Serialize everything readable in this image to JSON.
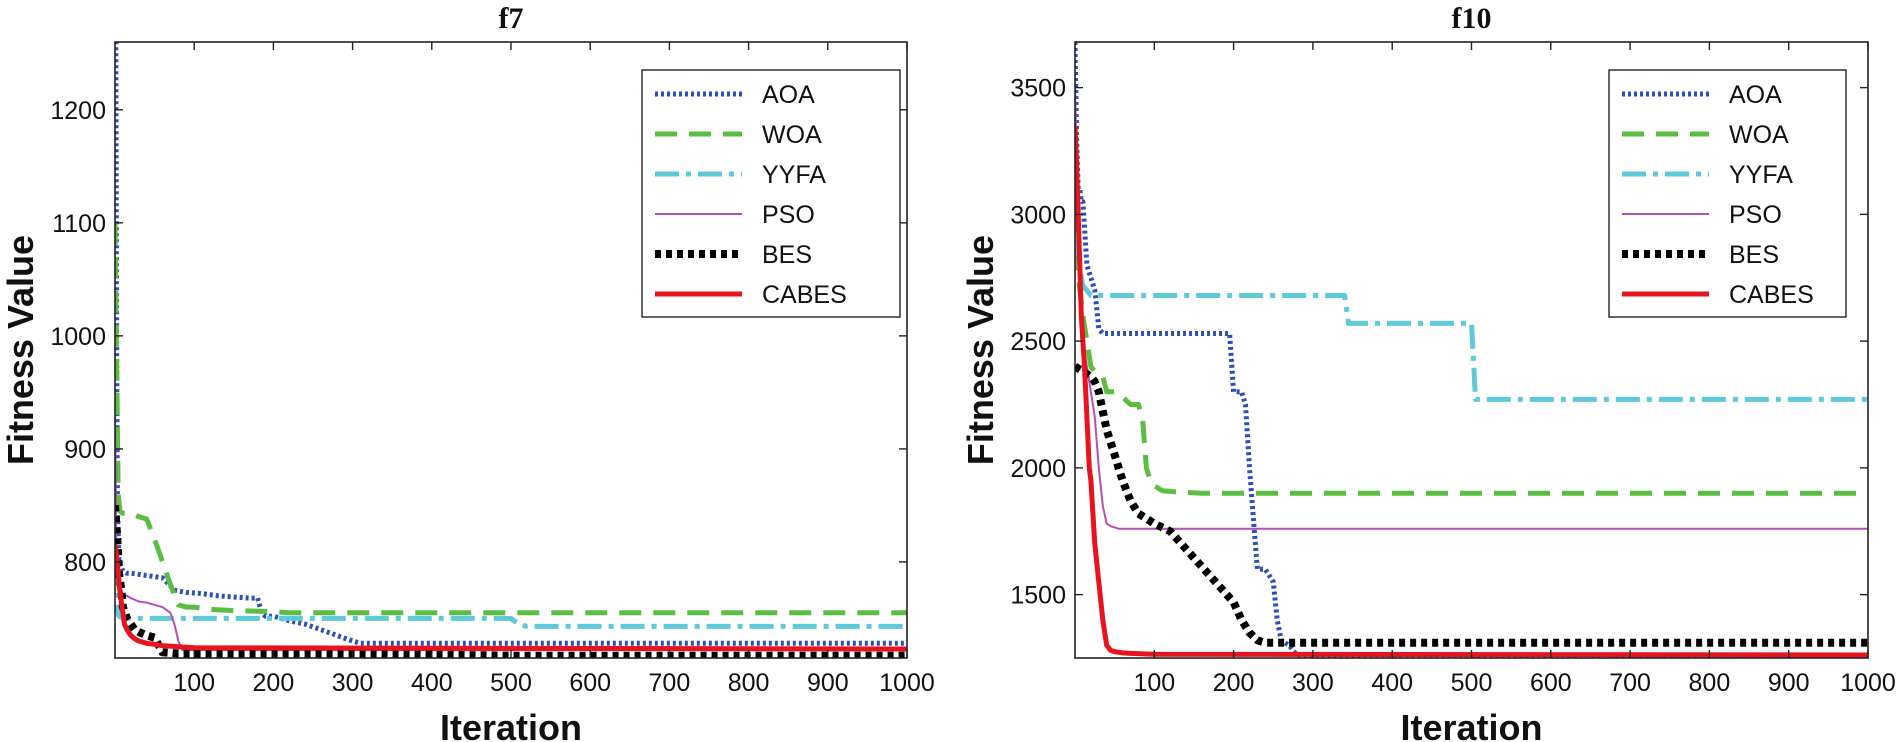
{
  "chart_data": [
    {
      "type": "line",
      "title": "f7",
      "xlabel": "Iteration",
      "ylabel": "Fitness Value",
      "xlim": [
        0,
        1000
      ],
      "ylim": [
        715,
        1260
      ],
      "xticks": [
        100,
        200,
        300,
        400,
        500,
        600,
        700,
        800,
        900,
        1000
      ],
      "yticks": [
        800,
        900,
        1000,
        1100,
        1200
      ],
      "legend_position": "top-right",
      "series": [
        {
          "name": "AOA",
          "color": "#2e4fb5",
          "style": "dotted",
          "x": [
            0,
            1,
            2,
            3,
            5,
            10,
            15,
            20,
            40,
            60,
            75,
            90,
            110,
            130,
            150,
            170,
            180,
            185,
            190,
            200,
            220,
            240,
            260,
            280,
            300,
            310,
            320,
            1000
          ],
          "y": [
            1260,
            1260,
            1000,
            850,
            800,
            792,
            790,
            790,
            788,
            786,
            775,
            773,
            772,
            770,
            769,
            768,
            768,
            755,
            752,
            752,
            748,
            745,
            740,
            735,
            730,
            728,
            728,
            728
          ]
        },
        {
          "name": "WOA",
          "color": "#5bbd42",
          "style": "dashed",
          "x": [
            0,
            2,
            4,
            6,
            10,
            20,
            30,
            40,
            50,
            60,
            70,
            80,
            90,
            100,
            120,
            150,
            200,
            220,
            250,
            1000
          ],
          "y": [
            1100,
            980,
            860,
            845,
            843,
            843,
            840,
            838,
            820,
            800,
            780,
            762,
            760,
            760,
            758,
            757,
            756,
            755,
            755,
            755
          ]
        },
        {
          "name": "YYFA",
          "color": "#5dc9d9",
          "style": "dashdot",
          "x": [
            0,
            2,
            5,
            10,
            20,
            500,
            510,
            520,
            1000
          ],
          "y": [
            800,
            760,
            752,
            750,
            750,
            750,
            745,
            743,
            743
          ]
        },
        {
          "name": "PSO",
          "color": "#b44fb8",
          "style": "solid",
          "x": [
            0,
            2,
            5,
            10,
            20,
            30,
            40,
            50,
            60,
            70,
            75,
            80,
            85,
            90,
            1000
          ],
          "y": [
            930,
            790,
            780,
            772,
            768,
            765,
            764,
            762,
            760,
            755,
            745,
            730,
            722,
            722,
            722
          ]
        },
        {
          "name": "BES",
          "color": "#000000",
          "style": "dotted-heavy",
          "x": [
            0,
            3,
            5,
            8,
            10,
            15,
            20,
            25,
            30,
            40,
            50,
            60,
            80,
            100,
            200,
            300,
            500,
            1000
          ],
          "y": [
            850,
            820,
            790,
            775,
            760,
            750,
            745,
            740,
            738,
            735,
            733,
            720,
            719,
            719,
            719,
            719,
            717,
            717
          ]
        },
        {
          "name": "CABES",
          "color": "#e8141d",
          "style": "solid-heavy",
          "x": [
            0,
            2,
            4,
            6,
            8,
            10,
            12,
            15,
            20,
            25,
            30,
            40,
            50,
            60,
            80,
            100,
            1000
          ],
          "y": [
            815,
            805,
            790,
            775,
            765,
            755,
            745,
            740,
            735,
            732,
            730,
            728,
            727,
            726,
            725,
            724,
            723
          ]
        }
      ]
    },
    {
      "type": "line",
      "title": "f10",
      "xlabel": "Iteration",
      "ylabel": "Fitness Value",
      "xlim": [
        0,
        1000
      ],
      "ylim": [
        1250,
        3680
      ],
      "xticks": [
        100,
        200,
        300,
        400,
        500,
        600,
        700,
        800,
        900,
        1000
      ],
      "yticks": [
        1500,
        2000,
        2500,
        3000,
        3500
      ],
      "legend_position": "top-right",
      "series": [
        {
          "name": "AOA",
          "color": "#2e4fb5",
          "style": "dotted",
          "x": [
            0,
            2,
            4,
            6,
            8,
            10,
            15,
            20,
            25,
            30,
            35,
            40,
            100,
            150,
            195,
            200,
            210,
            215,
            220,
            225,
            230,
            240,
            250,
            255,
            260,
            270,
            280,
            300,
            1000
          ],
          "y": [
            3680,
            3300,
            3100,
            3100,
            3050,
            3050,
            2800,
            2750,
            2700,
            2550,
            2530,
            2530,
            2530,
            2530,
            2530,
            2300,
            2300,
            2250,
            2000,
            1800,
            1600,
            1600,
            1550,
            1400,
            1320,
            1300,
            1260,
            1260,
            1260
          ]
        },
        {
          "name": "WOA",
          "color": "#5bbd42",
          "style": "dashed",
          "x": [
            0,
            3,
            6,
            10,
            15,
            20,
            25,
            30,
            35,
            40,
            50,
            60,
            70,
            80,
            85,
            90,
            95,
            100,
            110,
            130,
            160,
            200,
            1000
          ],
          "y": [
            3000,
            2800,
            2700,
            2600,
            2500,
            2400,
            2380,
            2370,
            2360,
            2300,
            2300,
            2280,
            2250,
            2250,
            2200,
            2000,
            1950,
            1930,
            1910,
            1905,
            1900,
            1900,
            1900
          ]
        },
        {
          "name": "YYFA",
          "color": "#5dc9d9",
          "style": "dashdot",
          "x": [
            0,
            5,
            10,
            15,
            20,
            340,
            345,
            500,
            505,
            1000
          ],
          "y": [
            3100,
            2800,
            2720,
            2700,
            2680,
            2680,
            2570,
            2570,
            2270,
            2270
          ]
        },
        {
          "name": "PSO",
          "color": "#b44fb8",
          "style": "solid",
          "x": [
            0,
            2,
            5,
            8,
            10,
            15,
            20,
            25,
            30,
            35,
            40,
            45,
            50,
            55,
            60,
            80,
            1000
          ],
          "y": [
            3500,
            3200,
            2900,
            2700,
            2500,
            2400,
            2300,
            2200,
            2000,
            1850,
            1780,
            1770,
            1765,
            1760,
            1760,
            1760,
            1760
          ]
        },
        {
          "name": "BES",
          "color": "#000000",
          "style": "dotted-heavy",
          "x": [
            0,
            5,
            10,
            15,
            20,
            25,
            30,
            40,
            50,
            60,
            70,
            80,
            100,
            120,
            140,
            160,
            180,
            200,
            210,
            220,
            230,
            240,
            260,
            280,
            300,
            1000
          ],
          "y": [
            2400,
            2390,
            2380,
            2370,
            2360,
            2340,
            2300,
            2150,
            2050,
            1950,
            1870,
            1820,
            1780,
            1750,
            1680,
            1610,
            1540,
            1470,
            1400,
            1350,
            1320,
            1310,
            1310,
            1310,
            1310,
            1310
          ]
        },
        {
          "name": "CABES",
          "color": "#e8141d",
          "style": "solid-heavy",
          "x": [
            0,
            2,
            4,
            6,
            8,
            10,
            12,
            15,
            18,
            20,
            25,
            30,
            35,
            40,
            45,
            50,
            60,
            70,
            100,
            1000
          ],
          "y": [
            3350,
            3200,
            3000,
            2800,
            2600,
            2500,
            2400,
            2200,
            2000,
            1950,
            1700,
            1550,
            1400,
            1300,
            1280,
            1275,
            1270,
            1268,
            1265,
            1262
          ]
        }
      ]
    }
  ]
}
